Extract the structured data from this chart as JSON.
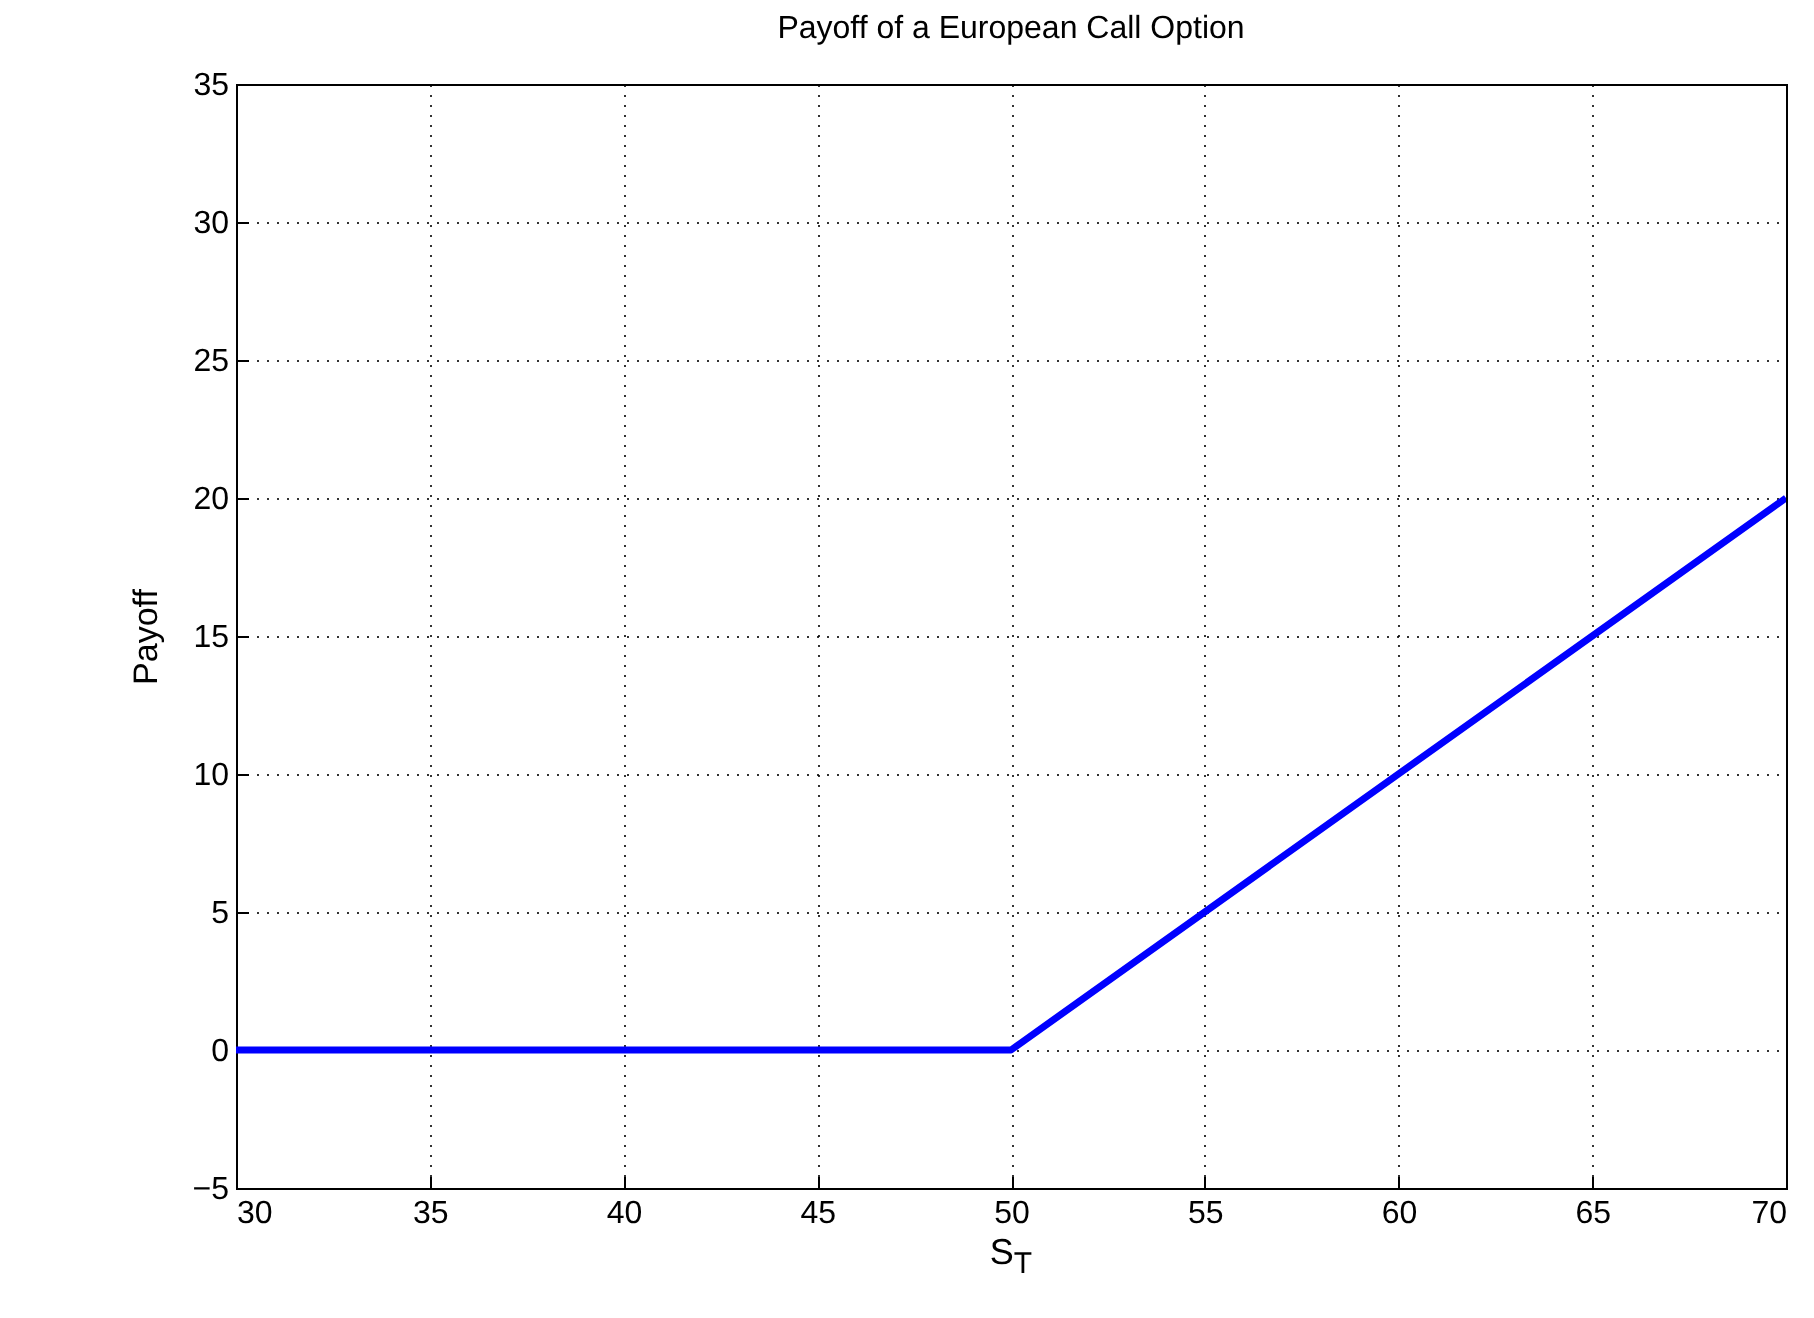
{
  "chart_data": {
    "type": "line",
    "title": "Payoff of a European Call Option",
    "xlabel": "S$_{T}$",
    "ylabel": "Payoff",
    "x": [
      30,
      50,
      70
    ],
    "series": [
      {
        "color": "#0000ff",
        "values": [
          0,
          0,
          20
        ]
      }
    ],
    "xlim": [
      30,
      70
    ],
    "xticks": [
      30,
      35,
      40,
      45,
      50,
      55,
      60,
      65,
      70
    ],
    "ylim": [
      -5,
      35
    ],
    "yticks": [
      {
        "value": -5,
        "label": "−5"
      },
      0,
      5,
      10,
      15,
      20,
      25,
      30,
      35
    ],
    "grid": true,
    "marker": "none",
    "line_style": "solid"
  }
}
